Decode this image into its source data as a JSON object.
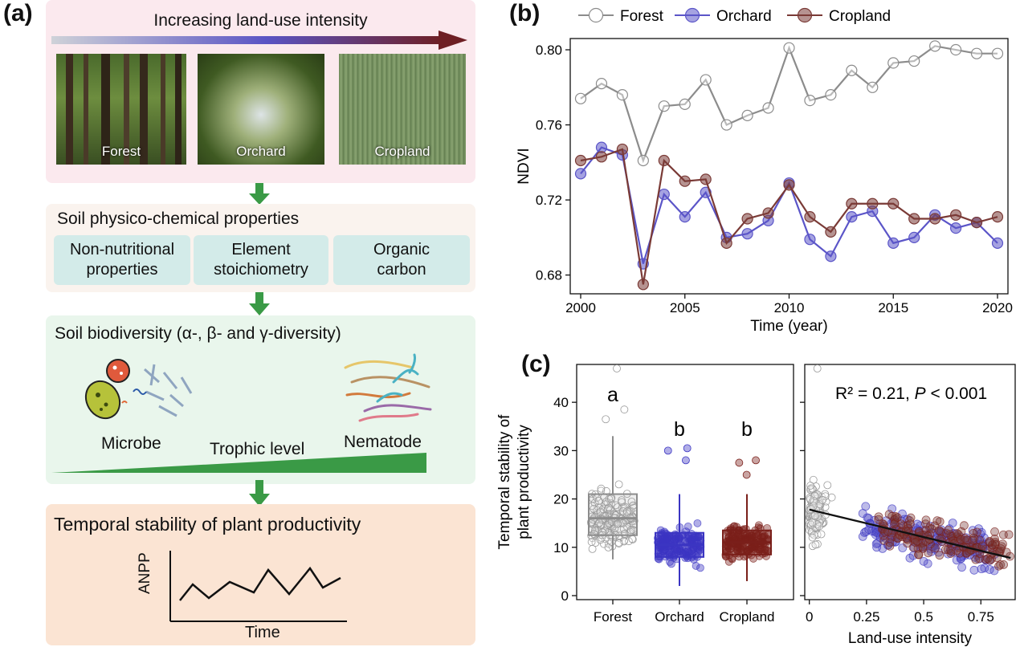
{
  "panel_a": {
    "label": "(a)",
    "intensity_title": "Increasing land-use intensity",
    "photos": [
      "Forest",
      "Orchard",
      "Cropland"
    ],
    "soil_props_title": "Soil physico-chemical properties",
    "soil_props": [
      "Non-nutritional\nproperties",
      "Element\nstoichiometry",
      "Organic\ncarbon"
    ],
    "biodiversity_title": "Soil biodiversity (α-,  β- and γ-diversity)",
    "microbe_label": "Microbe",
    "nematode_label": "Nematode",
    "trophic_label": "Trophic level",
    "stability_title": "Temporal stability of plant productivity",
    "anpp_label": "ANPP",
    "time_label": "Time",
    "colors": {
      "arrow_green": "#3a9a46",
      "gradient_start": "#cfd2d8",
      "gradient_mid": "#5a54c4",
      "gradient_end": "#6e1f24"
    }
  },
  "panel_b": {
    "label": "(b)",
    "chart_data": {
      "type": "line",
      "xlabel": "Time (year)",
      "ylabel": "NDVI",
      "xlim": [
        2000,
        2020
      ],
      "ylim": [
        0.67,
        0.806
      ],
      "xticks": [
        2000,
        2005,
        2010,
        2015,
        2020
      ],
      "yticks": [
        0.68,
        0.72,
        0.76,
        0.8
      ],
      "legend_position": "top",
      "x": [
        2000,
        2001,
        2002,
        2003,
        2004,
        2005,
        2006,
        2007,
        2008,
        2009,
        2010,
        2011,
        2012,
        2013,
        2014,
        2015,
        2016,
        2017,
        2018,
        2019,
        2020
      ],
      "series": [
        {
          "name": "Forest",
          "color": "#8c8c8c",
          "values": [
            0.774,
            0.782,
            0.776,
            0.741,
            0.77,
            0.771,
            0.784,
            0.76,
            0.765,
            0.769,
            0.801,
            0.773,
            0.776,
            0.789,
            0.78,
            0.793,
            0.794,
            0.802,
            0.8,
            0.798,
            0.798
          ]
        },
        {
          "name": "Orchard",
          "color": "#5b55c8",
          "values": [
            0.734,
            0.748,
            0.744,
            0.686,
            0.723,
            0.711,
            0.724,
            0.7,
            0.702,
            0.709,
            0.729,
            0.699,
            0.69,
            0.711,
            0.714,
            0.697,
            0.7,
            0.712,
            0.705,
            0.708,
            0.697
          ]
        },
        {
          "name": "Cropland",
          "color": "#7a3a36",
          "values": [
            0.741,
            0.743,
            0.747,
            0.675,
            0.741,
            0.73,
            0.731,
            0.697,
            0.71,
            0.713,
            0.728,
            0.711,
            0.703,
            0.718,
            0.718,
            0.718,
            0.71,
            0.71,
            0.712,
            0.708,
            0.711
          ]
        }
      ]
    }
  },
  "panel_c": {
    "label": "(c)",
    "ylabel_line1": "Temporal stability of",
    "ylabel_line2": "plant productivity",
    "chart_data": [
      {
        "type": "box",
        "categories": [
          "Forest",
          "Orchard",
          "Cropland"
        ],
        "ylim": [
          0,
          47
        ],
        "yticks": [
          0,
          10,
          20,
          30,
          40
        ],
        "letters": [
          "a",
          "b",
          "b"
        ],
        "colors": [
          "#8c8c8c",
          "#3b35c2",
          "#7a1f1a"
        ],
        "boxes": [
          {
            "min": 7.5,
            "q1": 12.5,
            "median": 16,
            "q3": 21,
            "max": 33
          },
          {
            "min": 2,
            "q1": 8,
            "median": 10.5,
            "q3": 13,
            "max": 21
          },
          {
            "min": 3,
            "q1": 8.5,
            "median": 11,
            "q3": 13.5,
            "max": 21
          }
        ],
        "outliers": [
          [
            47,
            36.5,
            38.5
          ],
          [
            30.5,
            28,
            30
          ],
          [
            27.5,
            28,
            25
          ]
        ]
      },
      {
        "type": "scatter",
        "xlabel": "Land-use intensity",
        "xlim": [
          -0.02,
          0.9
        ],
        "ylim": [
          0,
          47
        ],
        "xticks": [
          "0",
          "0.25",
          "0.5",
          "0.75"
        ],
        "xtick_values": [
          0,
          0.25,
          0.5,
          0.75
        ],
        "annotation_r2": "R² = 0.21, ",
        "annotation_p": "P",
        "annotation_p_value": " < 0.001",
        "regression": {
          "x0": 0,
          "y0": 17.8,
          "x1": 0.88,
          "y1": 7.8
        },
        "outliers": [
          {
            "x": 0.0,
            "y": 47
          }
        ]
      }
    ]
  }
}
